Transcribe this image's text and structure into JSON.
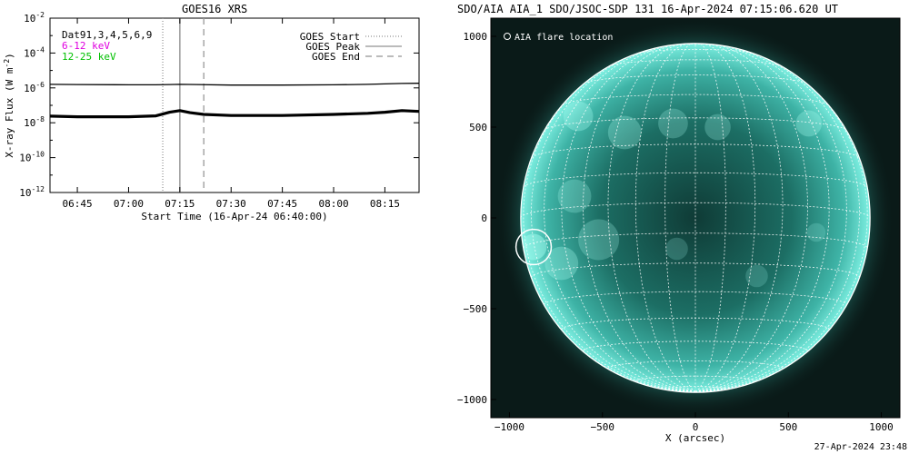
{
  "chart_data": [
    {
      "type": "line",
      "title": "GOES16 XRS",
      "xlabel": "Start Time (16-Apr-24 06:40:00)",
      "ylabel": "X-ray Flux (W m",
      "ylabel_sup": "-2",
      "ylabel_end": ")",
      "y_scale": "log",
      "ylim": [
        1e-12,
        0.01
      ],
      "xlim": [
        "06:37",
        "08:25"
      ],
      "x_ticks": [
        "06:45",
        "07:00",
        "07:15",
        "07:30",
        "07:45",
        "08:00",
        "08:15"
      ],
      "y_tick_exponents": [
        "-2",
        "-4",
        "-6",
        "-8",
        "-10",
        "-12"
      ],
      "y_tick_base": "10",
      "legend_left": {
        "dat_label": "Dat91,3,4,5,6,9",
        "band1_label": "6-12 keV",
        "band1_color": "#e000e0",
        "band2_label": "12-25 keV",
        "band2_color": "#00c000"
      },
      "legend_right": {
        "start_label": "GOES Start",
        "peak_label": "GOES Peak",
        "end_label": "GOES End"
      },
      "markers": {
        "start": "07:10",
        "peak": "07:15",
        "end": "07:22"
      },
      "series": [
        {
          "band": "long",
          "x": [
            "06:37",
            "06:45",
            "07:00",
            "07:08",
            "07:12",
            "07:15",
            "07:20",
            "07:30",
            "07:45",
            "08:00",
            "08:10",
            "08:15",
            "08:20",
            "08:25"
          ],
          "y": [
            1.6e-06,
            1.55e-06,
            1.5e-06,
            1.5e-06,
            1.55e-06,
            1.6e-06,
            1.55e-06,
            1.45e-06,
            1.45e-06,
            1.5e-06,
            1.6e-06,
            1.7e-06,
            1.8e-06,
            1.85e-06
          ]
        },
        {
          "band": "short",
          "x": [
            "06:37",
            "06:45",
            "07:00",
            "07:08",
            "07:12",
            "07:15",
            "07:18",
            "07:22",
            "07:30",
            "07:45",
            "08:00",
            "08:10",
            "08:15",
            "08:20",
            "08:25"
          ],
          "y": [
            2.4e-08,
            2.2e-08,
            2.2e-08,
            2.5e-08,
            4e-08,
            5e-08,
            3.8e-08,
            3e-08,
            2.6e-08,
            2.6e-08,
            3e-08,
            3.5e-08,
            4e-08,
            5e-08,
            4.5e-08
          ]
        }
      ]
    },
    {
      "type": "image",
      "title": "SDO/AIA AIA_1 SDO/JSOC-SDP 131 16-Apr-2024 07:15:06.620 UT",
      "xlabel": "X (arcsec)",
      "x_ticks": [
        "−1000",
        "−500",
        "0",
        "500",
        "1000"
      ],
      "y_ticks": [
        "1000",
        "500",
        "0",
        "−500",
        "−1000"
      ],
      "xlim": [
        -1100,
        1100
      ],
      "ylim": [
        -1100,
        1100
      ],
      "solar_radius_arcsec": 950,
      "grid_spacing_deg": 10,
      "legend": "AIA flare location",
      "flare_location": {
        "x": -870,
        "y": -160,
        "radius": 95
      },
      "colors": {
        "disk": "#5fd6c9",
        "background": "#0a1a18",
        "grid": "#ffffff"
      }
    }
  ],
  "footer": {
    "timestamp": "27-Apr-2024 23:48"
  }
}
